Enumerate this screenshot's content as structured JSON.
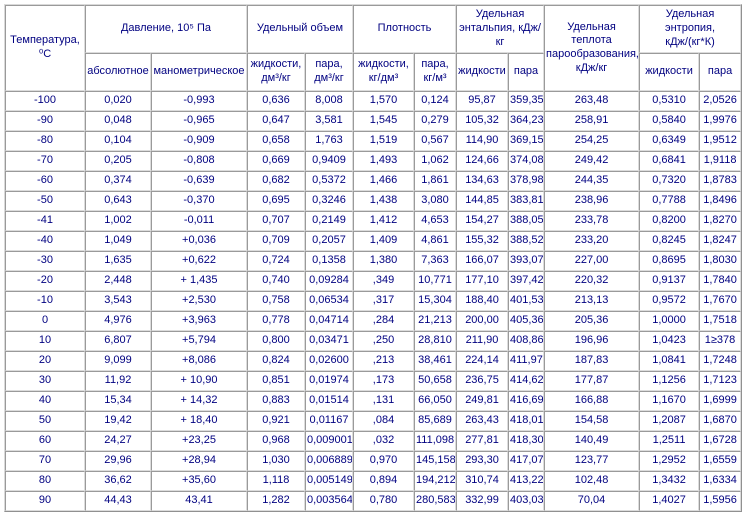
{
  "table": {
    "header": {
      "temperature": "Температура, ⁰С",
      "pressure": {
        "group": "Давление, 10⁵ Па",
        "absolute": "абсолютное",
        "gauge": "манометрическое"
      },
      "volume": {
        "group": "Удельный объем",
        "liquid": "жидкости, дм³/кг",
        "vapor": "пара, дм³/кг"
      },
      "density": {
        "group": "Плотность",
        "liquid": "жидкости, кг/дм³",
        "vapor": "пара, кг/м³"
      },
      "enthalpy": {
        "group": "Удельная энтальпия, кДж/кг",
        "liquid": "жидкости",
        "vapor": "пара"
      },
      "heat": {
        "group": "Удельная теплота парообразования, кДж/кг"
      },
      "entropy": {
        "group": "Удельная энтропия, кДж/(кг*К)",
        "liquid": "жидкости",
        "vapor": "пара"
      }
    },
    "rows": [
      [
        "-100",
        "0,020",
        "-0,993",
        "0,636",
        "8,008",
        "1,570",
        "0,124",
        "95,87",
        "359,35",
        "263,48",
        "0,5310",
        "2,0526"
      ],
      [
        "-90",
        "0,048",
        "-0,965",
        "0,647",
        "3,581",
        "1,545",
        "0,279",
        "105,32",
        "364,23",
        "258,91",
        "0,5840",
        "1,9976"
      ],
      [
        "-80",
        "0,104",
        "-0,909",
        "0,658",
        "1,763",
        "1,519",
        "0,567",
        "114,90",
        "369,15",
        "254,25",
        "0,6349",
        "1,9512"
      ],
      [
        "-70",
        "0,205",
        "-0,808",
        "0,669",
        "0,9409",
        "1,493",
        "1,062",
        "124,66",
        "374,08",
        "249,42",
        "0,6841",
        "1,9118"
      ],
      [
        "-60",
        "0,374",
        "-0,639",
        "0,682",
        "0,5372",
        "1,466",
        "1,861",
        "134,63",
        "378,98",
        "244,35",
        "0,7320",
        "1,8783"
      ],
      [
        "-50",
        "0,643",
        "-0,370",
        "0,695",
        "0,3246",
        "1,438",
        "3,080",
        "144,85",
        "383,81",
        "238,96",
        "0,7788",
        "1,8496"
      ],
      [
        "-41",
        "1,002",
        "-0,011",
        "0,707",
        "0,2149",
        "1,412",
        "4,653",
        "154,27",
        "388,05",
        "233,78",
        "0,8200",
        "1,8270"
      ],
      [
        "-40",
        "1,049",
        "+0,036",
        "0,709",
        "0,2057",
        "1,409",
        "4,861",
        "155,32",
        "388,52",
        "233,20",
        "0,8245",
        "1,8247"
      ],
      [
        "-30",
        "1,635",
        "+0,622",
        "0,724",
        "0,1358",
        "1,380",
        "7,363",
        "166,07",
        "393,07",
        "227,00",
        "0,8695",
        "1,8030"
      ],
      [
        "-20",
        "2,448",
        "+ 1,435",
        "0,740",
        "0,09284",
        ",349",
        "10,771",
        "177,10",
        "397,42",
        "220,32",
        "0,9137",
        "1,7840"
      ],
      [
        "-10",
        "3,543",
        "+2,530",
        "0,758",
        "0,06534",
        ",317",
        "15,304",
        "188,40",
        "401,53",
        "213,13",
        "0,9572",
        "1,7670"
      ],
      [
        "0",
        "4,976",
        "+3,963",
        "0,778",
        "0,04714",
        ",284",
        "21,213",
        "200,00",
        "405,36",
        "205,36",
        "1,0000",
        "1,7518"
      ],
      [
        "10",
        "6,807",
        "+5,794",
        "0,800",
        "0,03471",
        ",250",
        "28,810",
        "211,90",
        "408,86",
        "196,96",
        "1,0423",
        "1≥378"
      ],
      [
        "20",
        "9,099",
        "+8,086",
        "0,824",
        "0,02600",
        ",213",
        "38,461",
        "224,14",
        "411,97",
        "187,83",
        "1,0841",
        "1,7248"
      ],
      [
        "30",
        "11,92",
        "+ 10,90",
        "0,851",
        "0,01974",
        ",173",
        "50,658",
        "236,75",
        "414,62",
        "177,87",
        "1,1256",
        "1,7123"
      ],
      [
        "40",
        "15,34",
        "+ 14,32",
        "0,883",
        "0,01514",
        ",131",
        "66,050",
        "249,81",
        "416,69",
        "166,88",
        "1,1670",
        "1,6999"
      ],
      [
        "50",
        "19,42",
        "+ 18,40",
        "0,921",
        "0,01167",
        ",084",
        "85,689",
        "263,43",
        "418,01",
        "154,58",
        "1,2087",
        "1,6870"
      ],
      [
        "60",
        "24,27",
        "+23,25",
        "0,968",
        "0,009001",
        ",032",
        "111,098",
        "277,81",
        "418,30",
        "140,49",
        "1,2511",
        "1,6728"
      ],
      [
        "70",
        "29,96",
        "+28,94",
        "1,030",
        "0,006889",
        "0,970",
        "145,158",
        "293,30",
        "417,07",
        "123,77",
        "1,2952",
        "1,6559"
      ],
      [
        "80",
        "36,62",
        "+35,60",
        "1,118",
        "0,005149",
        "0,894",
        "194,212",
        "310,74",
        "413,22",
        "102,48",
        "1,3432",
        "1,6334"
      ],
      [
        "90",
        "44,43",
        "43,41",
        "1,282",
        "0,003564",
        "0,780",
        "280,583",
        "332,99",
        "403,03",
        "70,04",
        "1,4027",
        "1,5956"
      ]
    ]
  },
  "colors": {
    "text": "#000080",
    "border_dark": "#9a9a9a",
    "border_light": "#dcdcdc",
    "background": "#ffffff"
  }
}
